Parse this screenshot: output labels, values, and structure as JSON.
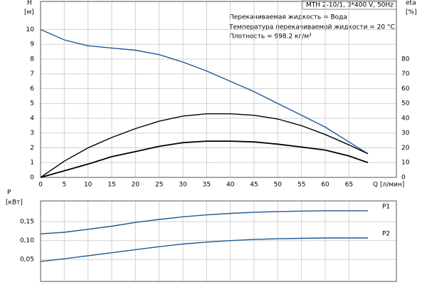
{
  "chart_data": [
    {
      "type": "line",
      "title": "MTH 2-10/1, 3*400 V, 50Hz",
      "annotations": [
        "Перекачиваемая жидкость = Вода",
        "Температура перекачиваемой жидкости = 20 °C",
        "Плотность = 998.2 кг/м³"
      ],
      "ylabel": "H",
      "yunit": "[м]",
      "y2label": "eta",
      "y2unit": "[%]",
      "xlabel": "Q [л/мин]",
      "x": [
        0,
        5,
        10,
        15,
        20,
        25,
        30,
        35,
        40,
        45,
        50,
        55,
        60,
        65,
        69
      ],
      "xlim": [
        0,
        75
      ],
      "xticks": [
        0,
        5,
        10,
        15,
        20,
        25,
        30,
        35,
        40,
        45,
        50,
        55,
        60,
        65
      ],
      "ylim": [
        0,
        11.9
      ],
      "yticks": [
        0,
        1,
        2,
        3,
        4,
        5,
        6,
        7,
        8,
        9,
        10
      ],
      "y2lim": [
        0,
        119
      ],
      "y2ticks": [
        0,
        10,
        20,
        30,
        40,
        50,
        60,
        70,
        80
      ],
      "grid": true,
      "series": [
        {
          "color": "#1f5a96",
          "values": [
            10,
            9.3,
            8.9,
            8.75,
            8.6,
            8.3,
            7.8,
            7.2,
            6.5,
            5.8,
            5.0,
            4.2,
            3.4,
            2.4,
            1.6
          ]
        },
        {
          "color": "#000000",
          "axis": "y2",
          "values": [
            0,
            11,
            20,
            27,
            33,
            38,
            41.5,
            43,
            43,
            42,
            39.5,
            35,
            29,
            22,
            16
          ]
        },
        {
          "color": "#000000",
          "values": [
            0,
            0.45,
            0.9,
            1.4,
            1.75,
            2.1,
            2.35,
            2.45,
            2.45,
            2.4,
            2.25,
            2.05,
            1.85,
            1.45,
            1.0
          ]
        }
      ]
    },
    {
      "type": "line",
      "ylabel": "P",
      "yunit": "[кВт]",
      "x": [
        0,
        5,
        10,
        15,
        20,
        25,
        30,
        35,
        40,
        45,
        50,
        55,
        60,
        65,
        69
      ],
      "xlim": [
        0,
        75
      ],
      "ylim": [
        -0.008,
        0.205
      ],
      "yticks": [
        {
          "value": 0.05,
          "label": "0,05"
        },
        {
          "value": 0.1,
          "label": "0,10"
        },
        {
          "value": 0.15,
          "label": "0,15"
        }
      ],
      "grid": true,
      "series": [
        {
          "name": "P1",
          "color": "#1f5a96",
          "values": [
            0.118,
            0.122,
            0.13,
            0.138,
            0.148,
            0.156,
            0.163,
            0.168,
            0.172,
            0.175,
            0.177,
            0.178,
            0.179,
            0.179,
            0.179
          ]
        },
        {
          "name": "P2",
          "color": "#1f5a96",
          "values": [
            0.045,
            0.052,
            0.06,
            0.068,
            0.076,
            0.084,
            0.091,
            0.096,
            0.1,
            0.103,
            0.105,
            0.106,
            0.107,
            0.107,
            0.107
          ]
        }
      ]
    }
  ]
}
